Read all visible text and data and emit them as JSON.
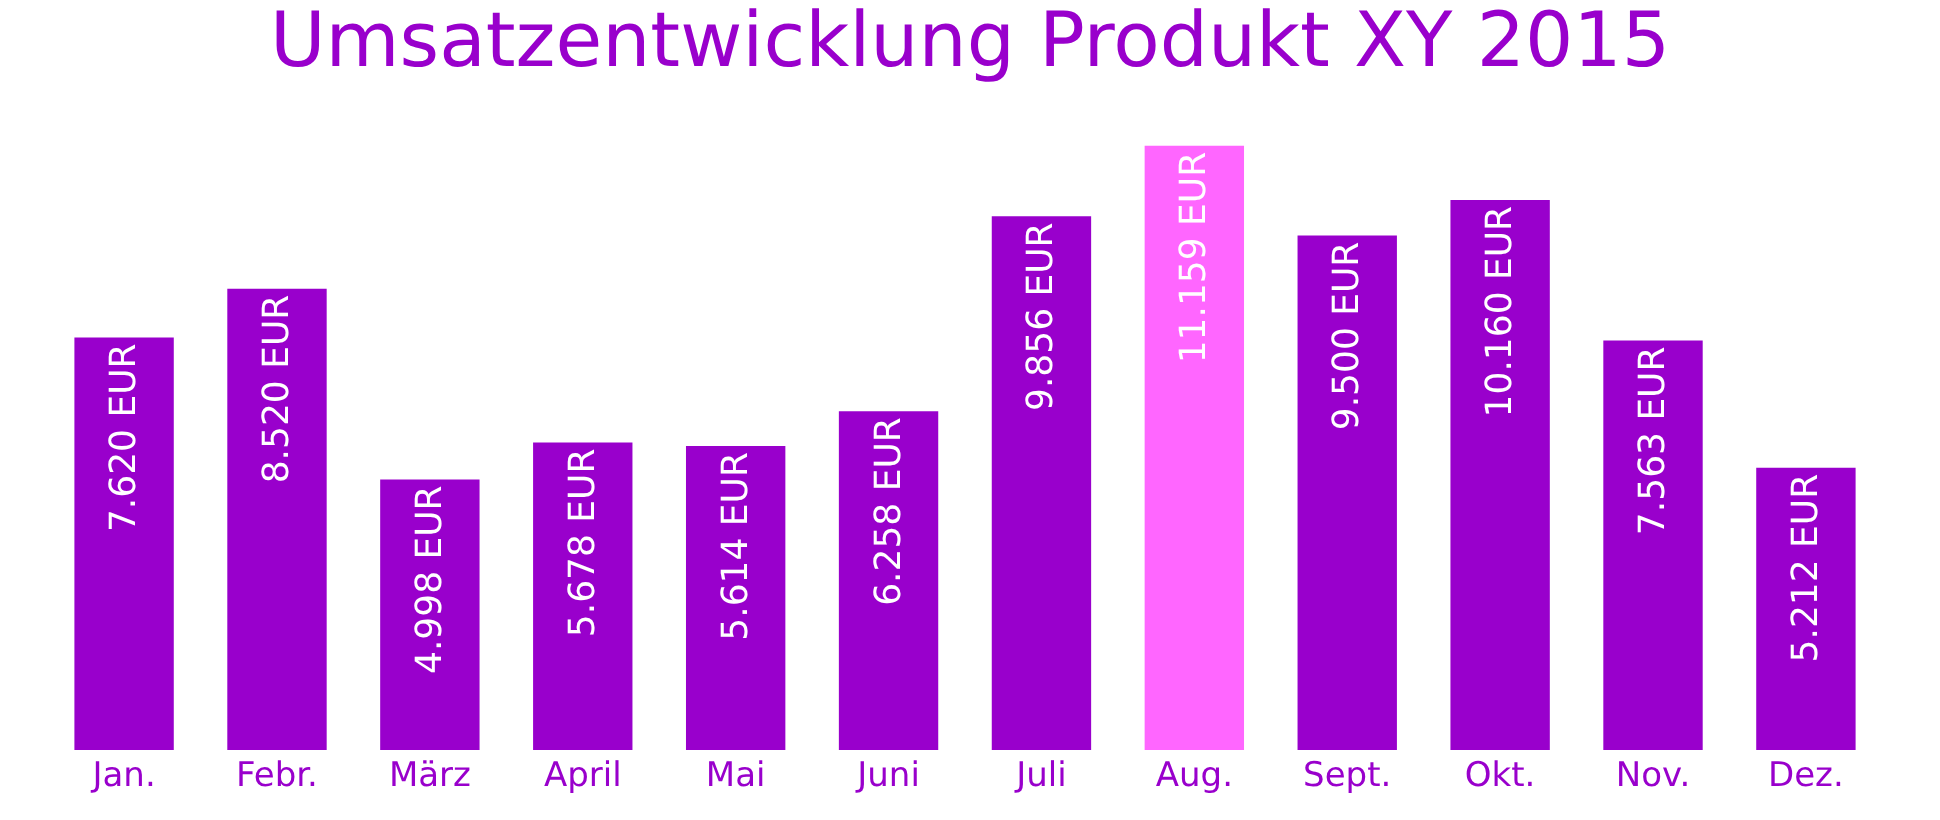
{
  "chart_data": {
    "type": "bar",
    "title": "Umsatzentwicklung Produkt XY 2015",
    "categories": [
      "Jan.",
      "Febr.",
      "März",
      "April",
      "Mai",
      "Juni",
      "Juli",
      "Aug.",
      "Sept.",
      "Okt.",
      "Nov.",
      "Dez."
    ],
    "values": [
      7620,
      8520,
      4998,
      5678,
      5614,
      6258,
      9856,
      11159,
      9500,
      10160,
      7563,
      5212
    ],
    "value_labels": [
      "7.620 EUR",
      "8.520 EUR",
      "4.998 EUR",
      "5.678 EUR",
      "5.614 EUR",
      "6.258 EUR",
      "9.856 EUR",
      "11.159 EUR",
      "9.500 EUR",
      "10.160 EUR",
      "7.563 EUR",
      "5.212 EUR"
    ],
    "colors": [
      "#9900cc",
      "#9900cc",
      "#9900cc",
      "#9900cc",
      "#9900cc",
      "#9900cc",
      "#9900cc",
      "#ff66ff",
      "#9900cc",
      "#9900cc",
      "#9900cc",
      "#9900cc"
    ],
    "tick_labels": "x"
  }
}
